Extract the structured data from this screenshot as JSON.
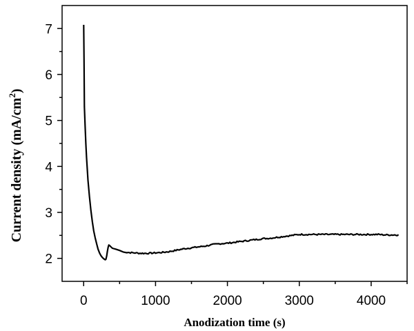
{
  "chart_data": {
    "type": "line",
    "xlabel": "Anodization time (s)",
    "ylabel": {
      "text": "Current density (mA/cm",
      "superscript": "2",
      "suffix": ")"
    },
    "xlim": [
      -300,
      4500
    ],
    "ylim": [
      1.5,
      7.5
    ],
    "xticks": [
      0,
      1000,
      2000,
      3000,
      4000
    ],
    "yticks": [
      2,
      3,
      4,
      5,
      6,
      7
    ],
    "grid": false,
    "series": [
      {
        "color": "#000000",
        "points": [
          [
            0,
            7.08
          ],
          [
            5,
            6.3
          ],
          [
            10,
            5.3
          ],
          [
            20,
            4.9
          ],
          [
            30,
            4.5
          ],
          [
            40,
            4.2
          ],
          [
            60,
            3.7
          ],
          [
            80,
            3.35
          ],
          [
            100,
            3.05
          ],
          [
            120,
            2.8
          ],
          [
            140,
            2.6
          ],
          [
            160,
            2.45
          ],
          [
            180,
            2.32
          ],
          [
            200,
            2.2
          ],
          [
            220,
            2.12
          ],
          [
            240,
            2.06
          ],
          [
            260,
            2.02
          ],
          [
            280,
            1.99
          ],
          [
            300,
            1.97
          ],
          [
            310,
            1.98
          ],
          [
            320,
            2.05
          ],
          [
            330,
            2.15
          ],
          [
            340,
            2.24
          ],
          [
            350,
            2.29
          ],
          [
            360,
            2.28
          ],
          [
            380,
            2.25
          ],
          [
            400,
            2.22
          ],
          [
            450,
            2.2
          ],
          [
            500,
            2.17
          ],
          [
            550,
            2.15
          ],
          [
            600,
            2.13
          ],
          [
            700,
            2.12
          ],
          [
            800,
            2.11
          ],
          [
            900,
            2.11
          ],
          [
            1000,
            2.12
          ],
          [
            1100,
            2.13
          ],
          [
            1200,
            2.15
          ],
          [
            1300,
            2.18
          ],
          [
            1400,
            2.21
          ],
          [
            1500,
            2.23
          ],
          [
            1600,
            2.25
          ],
          [
            1700,
            2.27
          ],
          [
            1800,
            2.3
          ],
          [
            1900,
            2.32
          ],
          [
            2000,
            2.33
          ],
          [
            2100,
            2.35
          ],
          [
            2200,
            2.37
          ],
          [
            2300,
            2.39
          ],
          [
            2400,
            2.41
          ],
          [
            2500,
            2.43
          ],
          [
            2600,
            2.44
          ],
          [
            2700,
            2.46
          ],
          [
            2800,
            2.48
          ],
          [
            2900,
            2.5
          ],
          [
            3000,
            2.52
          ],
          [
            3100,
            2.52
          ],
          [
            3200,
            2.52
          ],
          [
            3300,
            2.52
          ],
          [
            3400,
            2.52
          ],
          [
            3500,
            2.52
          ],
          [
            3600,
            2.52
          ],
          [
            3700,
            2.52
          ],
          [
            3800,
            2.52
          ],
          [
            3900,
            2.52
          ],
          [
            4000,
            2.52
          ],
          [
            4100,
            2.52
          ],
          [
            4200,
            2.51
          ],
          [
            4300,
            2.51
          ],
          [
            4380,
            2.51
          ]
        ]
      }
    ]
  }
}
